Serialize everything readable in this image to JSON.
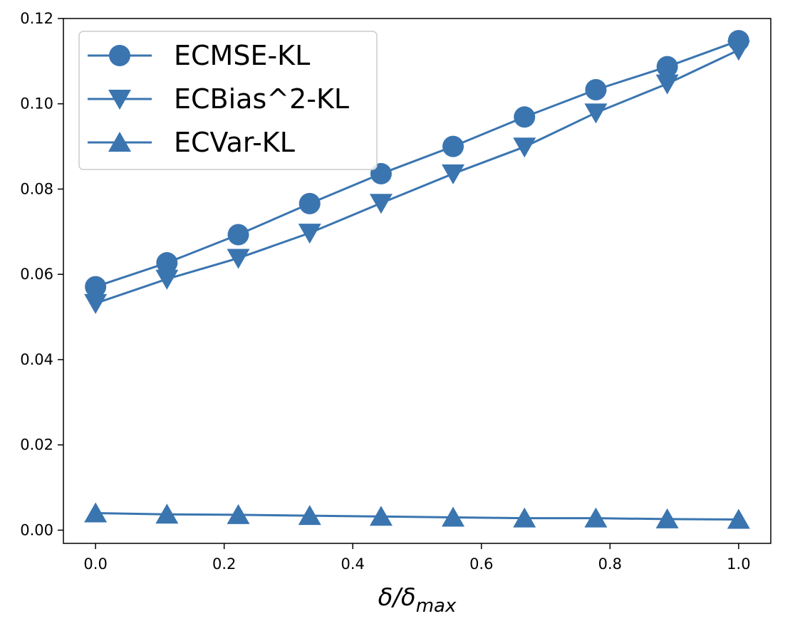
{
  "chart_data": {
    "type": "line",
    "title": "",
    "xlabel": {
      "main": "δ/δ",
      "subscript": "max"
    },
    "ylabel": "",
    "xlim": [
      -0.05,
      1.05
    ],
    "ylim": [
      -0.0031,
      0.12
    ],
    "x_ticks": [
      0.0,
      0.2,
      0.4,
      0.6,
      0.8,
      1.0
    ],
    "x_tick_labels": [
      "0.0",
      "0.2",
      "0.4",
      "0.6",
      "0.8",
      "1.0"
    ],
    "y_ticks": [
      0.0,
      0.02,
      0.04,
      0.06,
      0.08,
      0.1,
      0.12
    ],
    "y_tick_labels": [
      "0.00",
      "0.02",
      "0.04",
      "0.06",
      "0.08",
      "0.10",
      "0.12"
    ],
    "grid": false,
    "legend_position": "top-left",
    "color": "#3a75b0",
    "x": [
      0.0,
      0.111,
      0.222,
      0.333,
      0.444,
      0.556,
      0.667,
      0.778,
      0.889,
      1.0
    ],
    "series": [
      {
        "name": "ECMSE-KL",
        "marker": "circle",
        "values": [
          0.0571,
          0.0627,
          0.0693,
          0.0766,
          0.0836,
          0.09,
          0.0969,
          0.1033,
          0.1087,
          0.1148
        ]
      },
      {
        "name": "ECBias^2-KL",
        "marker": "triangle-down",
        "values": [
          0.0532,
          0.0589,
          0.0638,
          0.0697,
          0.0767,
          0.0836,
          0.0899,
          0.0979,
          0.1047,
          0.1126
        ]
      },
      {
        "name": "ECVar-KL",
        "marker": "triangle-up",
        "values": [
          0.004,
          0.0037,
          0.0036,
          0.0034,
          0.0032,
          0.003,
          0.0028,
          0.0028,
          0.0026,
          0.0025
        ]
      }
    ]
  }
}
